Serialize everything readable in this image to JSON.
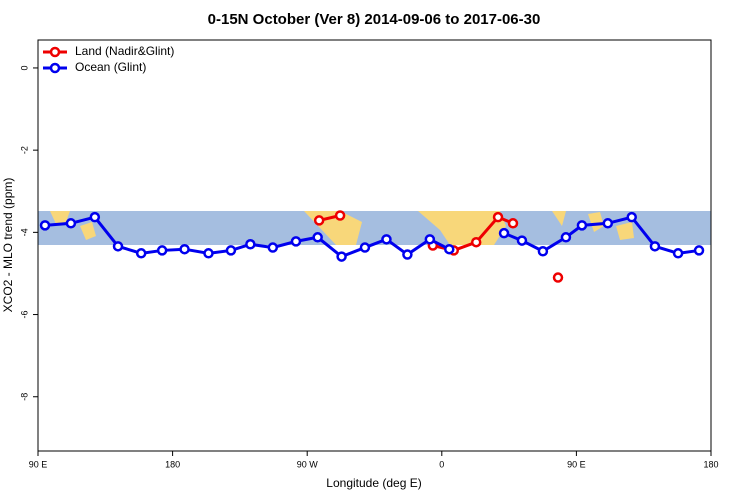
{
  "chart_data": {
    "type": "line",
    "title": "0-15N October (Ver 8)   2014-09-06 to 2017-06-30",
    "x_label": "Longitude (deg E)",
    "y_label": "XCO2 - MLO trend (ppm)",
    "xlim": [
      90,
      540
    ],
    "xticks": [
      {
        "value": 90,
        "label": "90 E"
      },
      {
        "value": 180,
        "label": "180"
      },
      {
        "value": 270,
        "label": "90 W"
      },
      {
        "value": 360,
        "label": "0"
      },
      {
        "value": 450,
        "label": "90 E"
      },
      {
        "value": 540,
        "label": "180"
      }
    ],
    "ylim": [
      -9.32,
      0.68
    ],
    "yticks": [
      0,
      -2,
      -4,
      -6,
      -8
    ],
    "legend": "top-left",
    "series": [
      {
        "name": "Land (Nadir&Glint)",
        "color": "#ee0000",
        "x": [
          278,
          292,
          null,
          354,
          368,
          383,
          397.6,
          407.6,
          null,
          437.7
        ],
        "values": [
          -3.71,
          -3.59,
          null,
          -4.32,
          -4.44,
          -4.24,
          -3.63,
          -3.78,
          null,
          -5.1
        ]
      },
      {
        "name": "Ocean (Glint)",
        "color": "#0000ee",
        "x": [
          94.7,
          112,
          128,
          143.5,
          159,
          173,
          188,
          204,
          219,
          232,
          247,
          262.5,
          277,
          293,
          308.6,
          323,
          337,
          352,
          365,
          null,
          401.6,
          413.6,
          427.6,
          443,
          453.7,
          471,
          487,
          502.5,
          518,
          532
        ],
        "values": [
          -3.83,
          -3.78,
          -3.63,
          -4.34,
          -4.51,
          -4.44,
          -4.41,
          -4.51,
          -4.44,
          -4.29,
          -4.37,
          -4.22,
          -4.12,
          -4.59,
          -4.37,
          -4.17,
          -4.54,
          -4.17,
          -4.41,
          null,
          -4.02,
          -4.2,
          -4.46,
          -4.12,
          -3.83,
          -3.78,
          -3.63,
          -4.34,
          -4.51,
          -4.44
        ]
      }
    ]
  }
}
